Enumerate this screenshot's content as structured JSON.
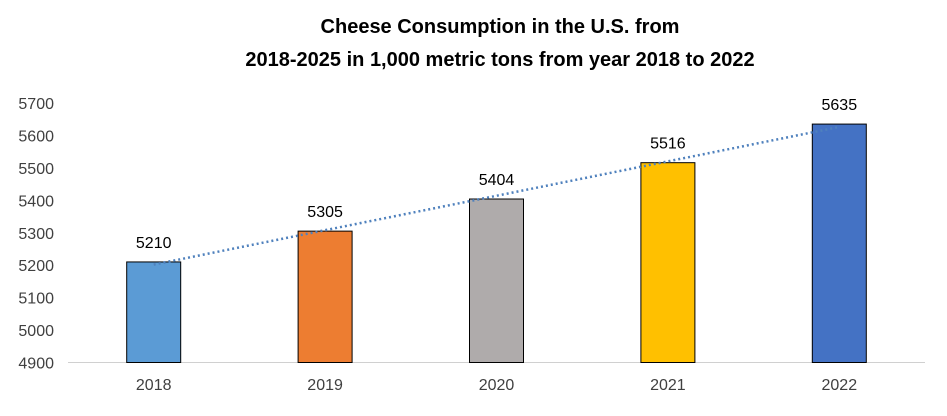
{
  "chart_data": {
    "type": "bar",
    "title_lines": [
      "Cheese Consumption  in the U.S. from",
      "2018-2025 in 1,000 metric tons from year 2018 to 2022"
    ],
    "categories": [
      "2018",
      "2019",
      "2020",
      "2021",
      "2022"
    ],
    "values": [
      5210,
      5305,
      5404,
      5516,
      5635
    ],
    "data_labels": [
      "5210",
      "5305",
      "5404",
      "5516",
      "5635"
    ],
    "colors": [
      "#5b9bd5",
      "#ed7d31",
      "#afabab",
      "#ffc000",
      "#4472c4"
    ],
    "ylim": [
      4900,
      5700
    ],
    "yticks": [
      "4900",
      "5000",
      "5100",
      "5200",
      "5300",
      "5400",
      "5500",
      "5600",
      "5700"
    ],
    "trendline": {
      "type": "linear",
      "style": "dotted",
      "color": "#4f81bd"
    },
    "grid": false,
    "legend": "none",
    "xlabel": "",
    "ylabel": ""
  }
}
